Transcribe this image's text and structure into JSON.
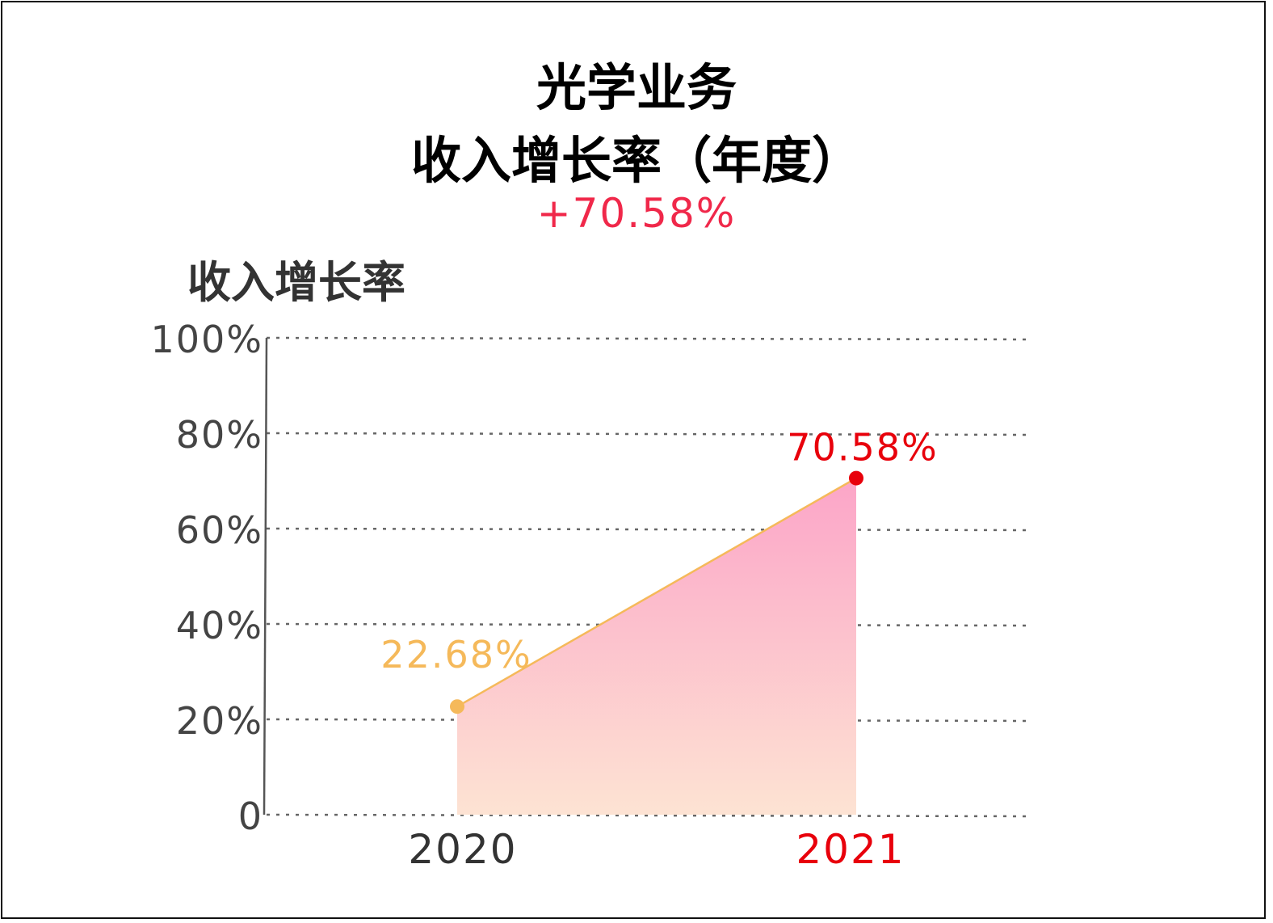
{
  "title_line1": "光学业务",
  "title_line2": "收入增长率（年度）",
  "headline_value": "+70.58%",
  "chart_data": {
    "type": "area",
    "title": "光学业务 收入增长率（年度）",
    "ylabel": "收入增长率",
    "xlabel": "",
    "categories": [
      "2020",
      "2021"
    ],
    "values": [
      22.68,
      70.58
    ],
    "data_labels": [
      "22.68%",
      "70.58%"
    ],
    "ylim": [
      0,
      100
    ],
    "yticks": [
      0,
      20,
      40,
      60,
      80,
      100
    ],
    "ytick_labels": [
      "0",
      "20%",
      "40%",
      "60%",
      "80%",
      "100%"
    ],
    "grid": true,
    "grid_style": "dotted",
    "legend": "none",
    "colors": {
      "line": "#f5b95a",
      "point_2020": "#f5b95a",
      "point_2021": "#e8000b",
      "label_2020": "#f5b95a",
      "label_2021": "#e8000b",
      "xtick_2021": "#e8000b",
      "xtick_default": "#333333",
      "area_top": "#fca5c8",
      "area_bottom": "#fde3d3",
      "headline": "#f0284a"
    }
  }
}
